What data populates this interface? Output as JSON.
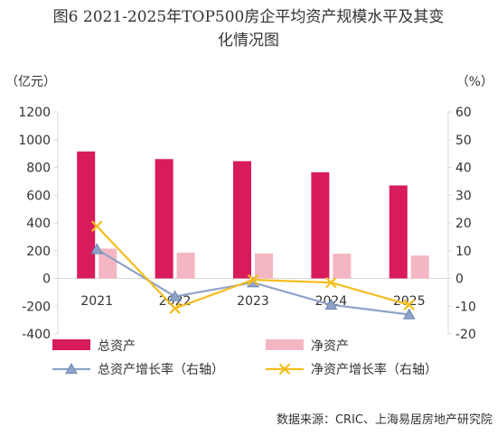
{
  "title_line1": "图6 2021-2025年TOP500房企平均资产规模水平及其变",
  "title_line2": "化情况图",
  "left_unit": "（亿元）",
  "right_unit": "（%）",
  "source": "数据来源：CRIC、上海易居房地产研究院",
  "colors": {
    "total_bar": "#D81B5A",
    "net_bar": "#F4B6C2",
    "total_growth_line": "#8FA3C8",
    "total_growth_marker": "#8FA3C8",
    "net_growth_line": "#F5BD1E",
    "axis": "#D9D9D9"
  },
  "chart_data": {
    "type": "bar",
    "categories": [
      "2021",
      "2022",
      "2023",
      "2024",
      "2025"
    ],
    "series": [
      {
        "name": "总资产",
        "type": "bar",
        "axis": "left",
        "values": [
          915,
          860,
          845,
          765,
          670
        ]
      },
      {
        "name": "净资产",
        "type": "bar",
        "axis": "left",
        "values": [
          215,
          185,
          180,
          178,
          165
        ]
      },
      {
        "name": "总资产增长率（右轴）",
        "type": "line",
        "axis": "right",
        "marker": "triangle",
        "values": [
          10.5,
          -6.5,
          -1.5,
          -9.5,
          -13.0
        ]
      },
      {
        "name": "净资产增长率（右轴）",
        "type": "line",
        "axis": "right",
        "marker": "x",
        "values": [
          18.8,
          -10.8,
          -0.5,
          -1.5,
          -9.5
        ]
      }
    ],
    "left_axis": {
      "min": -400,
      "max": 1200,
      "ticks": [
        "-400",
        "-200",
        "0",
        "200",
        "400",
        "600",
        "800",
        "1000",
        "1200"
      ]
    },
    "right_axis": {
      "min": -20,
      "max": 60,
      "ticks": [
        "-20",
        "-10",
        "0",
        "10",
        "20",
        "30",
        "40",
        "50",
        "60"
      ]
    },
    "grid": false,
    "legend_position": "bottom"
  }
}
